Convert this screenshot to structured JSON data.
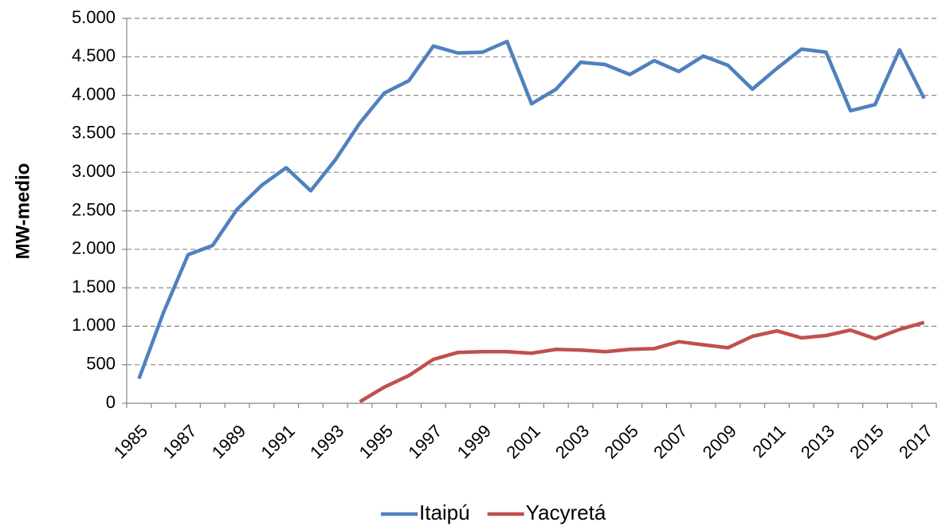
{
  "chart_data": {
    "type": "line",
    "y_label": "MW-medio",
    "categories": [
      "1985",
      null,
      "1987",
      null,
      "1989",
      null,
      "1991",
      null,
      "1993",
      null,
      "1995",
      null,
      "1997",
      null,
      "1999",
      null,
      "2001",
      null,
      "2003",
      null,
      "2005",
      null,
      "2007",
      null,
      "2009",
      null,
      "2011",
      null,
      "2013",
      null,
      "2015",
      null,
      "2017"
    ],
    "series": [
      {
        "name": "Itaipú",
        "color": "#4f81bd",
        "values": [
          320,
          1180,
          1930,
          2050,
          2520,
          2830,
          3060,
          2760,
          3160,
          3640,
          4030,
          4190,
          4640,
          4550,
          4560,
          4700,
          3890,
          4080,
          4430,
          4400,
          4270,
          4450,
          4310,
          4510,
          4390,
          4080,
          4350,
          4600,
          4560,
          3800,
          3880,
          4590,
          3960
        ]
      },
      {
        "name": "Yacyretá",
        "color": "#c0504d",
        "values": [
          null,
          null,
          null,
          null,
          null,
          null,
          null,
          null,
          null,
          20,
          210,
          360,
          570,
          660,
          670,
          670,
          650,
          700,
          690,
          670,
          700,
          710,
          800,
          760,
          720,
          870,
          940,
          850,
          880,
          950,
          840,
          960,
          1050
        ]
      }
    ],
    "ylim": [
      0,
      5000
    ],
    "yticks": [
      0,
      500,
      {
        "value": 1000,
        "label": "1.000"
      },
      {
        "value": 1500,
        "label": "1.500"
      },
      {
        "value": 2000,
        "label": "2.000"
      },
      {
        "value": 2500,
        "label": "2.500"
      },
      {
        "value": 3000,
        "label": "3.000"
      },
      {
        "value": 3500,
        "label": "3.500"
      },
      {
        "value": 4000,
        "label": "4.000"
      },
      {
        "value": 4500,
        "label": "4.500"
      },
      {
        "value": 5000,
        "label": "5.000"
      }
    ],
    "grid": true,
    "legend": "bottom"
  }
}
